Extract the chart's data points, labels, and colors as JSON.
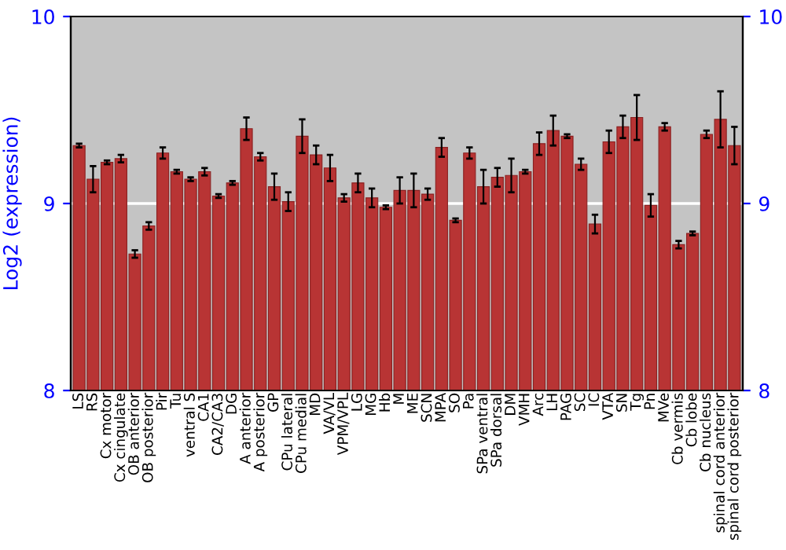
{
  "chart_data": {
    "type": "bar",
    "ylabel": "Log2 (expression)",
    "categories": [
      "LS",
      "RS",
      "Cx motor",
      "Cx cingulate",
      "OB anterior",
      "OB posterior",
      "Pir",
      "Tu",
      "ventral S",
      "CA1",
      "CA2/CA3",
      "DG",
      "A anterior",
      "A posterior",
      "GP",
      "CPu lateral",
      "CPu medial",
      "MD",
      "VA/VL",
      "VPM/VPL",
      "LG",
      "MG",
      "Hb",
      "M",
      "ME",
      "SCN",
      "MPA",
      "SO",
      "Pa",
      "SPa ventral",
      "SPa dorsal",
      "DM",
      "VMH",
      "Arc",
      "LH",
      "PAG",
      "SC",
      "IC",
      "VTA",
      "SN",
      "Tg",
      "Pn",
      "MVe",
      "Cb vermis",
      "Cb lobe",
      "Cb nucleus",
      "spinal cord anterior",
      "spinal cord posterior"
    ],
    "values": [
      9.31,
      9.13,
      9.22,
      9.24,
      8.73,
      8.88,
      9.27,
      9.17,
      9.13,
      9.17,
      9.04,
      9.11,
      9.4,
      9.25,
      9.09,
      9.01,
      9.36,
      9.26,
      9.19,
      9.03,
      9.11,
      9.03,
      8.98,
      9.07,
      9.07,
      9.05,
      9.3,
      8.91,
      9.27,
      9.09,
      9.14,
      9.15,
      9.17,
      9.32,
      9.39,
      9.36,
      9.21,
      8.89,
      9.33,
      9.41,
      9.46,
      8.99,
      9.41,
      8.78,
      8.84,
      9.37,
      9.45,
      9.31
    ],
    "errors": [
      0.01,
      0.07,
      0.01,
      0.02,
      0.02,
      0.02,
      0.03,
      0.01,
      0.01,
      0.02,
      0.01,
      0.01,
      0.06,
      0.02,
      0.07,
      0.05,
      0.09,
      0.05,
      0.07,
      0.02,
      0.05,
      0.05,
      0.01,
      0.07,
      0.09,
      0.03,
      0.05,
      0.01,
      0.03,
      0.09,
      0.05,
      0.09,
      0.01,
      0.06,
      0.08,
      0.01,
      0.03,
      0.05,
      0.06,
      0.06,
      0.12,
      0.06,
      0.02,
      0.02,
      0.01,
      0.02,
      0.15,
      0.1
    ],
    "color": "#b83434",
    "ylim": [
      8,
      10
    ],
    "yticks": [
      8,
      9,
      10
    ],
    "y2lim": [
      8,
      10
    ],
    "y2ticks": [
      8,
      9,
      10
    ],
    "ref_lines": [
      {
        "axis": "y",
        "value": 9,
        "color": "#ffffff"
      }
    ]
  }
}
